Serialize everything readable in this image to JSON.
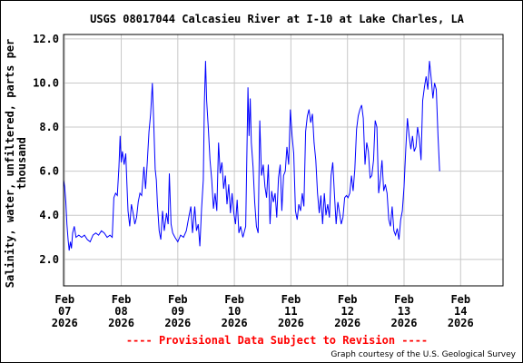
{
  "chart_data": {
    "type": "line",
    "title": "USGS 08017044 Calcasieu River at I-10 at Lake Charles, LA",
    "ylabel_line1": "Salinity, water, unfiltered, parts per",
    "ylabel_line2": "thousand",
    "xlabel": "",
    "ylim": [
      0.8,
      12.2
    ],
    "yticks": [
      "2.0",
      "4.0",
      "6.0",
      "8.0",
      "10.0",
      "12.0"
    ],
    "ytick_values": [
      2,
      4,
      6,
      8,
      10,
      12
    ],
    "xlim": [
      6.98,
      14.75
    ],
    "x_unit": "day of Feb 2026",
    "xticks": [
      {
        "x": 7,
        "month": "Feb",
        "day": "07",
        "year": "2026"
      },
      {
        "x": 8,
        "month": "Feb",
        "day": "08",
        "year": "2026"
      },
      {
        "x": 9,
        "month": "Feb",
        "day": "09",
        "year": "2026"
      },
      {
        "x": 10,
        "month": "Feb",
        "day": "10",
        "year": "2026"
      },
      {
        "x": 11,
        "month": "Feb",
        "day": "11",
        "year": "2026"
      },
      {
        "x": 12,
        "month": "Feb",
        "day": "12",
        "year": "2026"
      },
      {
        "x": 13,
        "month": "Feb",
        "day": "13",
        "year": "2026"
      },
      {
        "x": 14,
        "month": "Feb",
        "day": "14",
        "year": "2026"
      }
    ],
    "grid": true,
    "series": [
      {
        "color": "#0000ff",
        "points": [
          [
            6.98,
            5.6
          ],
          [
            7.0,
            5.3
          ],
          [
            7.02,
            4.6
          ],
          [
            7.04,
            3.6
          ],
          [
            7.06,
            2.9
          ],
          [
            7.08,
            2.4
          ],
          [
            7.1,
            2.8
          ],
          [
            7.12,
            2.5
          ],
          [
            7.14,
            3.2
          ],
          [
            7.17,
            3.5
          ],
          [
            7.2,
            3.0
          ],
          [
            7.25,
            3.1
          ],
          [
            7.3,
            3.0
          ],
          [
            7.35,
            3.1
          ],
          [
            7.4,
            2.9
          ],
          [
            7.45,
            2.8
          ],
          [
            7.5,
            3.1
          ],
          [
            7.55,
            3.2
          ],
          [
            7.6,
            3.1
          ],
          [
            7.65,
            3.3
          ],
          [
            7.7,
            3.2
          ],
          [
            7.75,
            3.0
          ],
          [
            7.8,
            3.1
          ],
          [
            7.84,
            3.0
          ],
          [
            7.87,
            4.8
          ],
          [
            7.9,
            5.0
          ],
          [
            7.93,
            4.9
          ],
          [
            7.96,
            6.2
          ],
          [
            7.98,
            7.6
          ],
          [
            8.0,
            6.4
          ],
          [
            8.02,
            6.9
          ],
          [
            8.05,
            6.3
          ],
          [
            8.08,
            6.8
          ],
          [
            8.1,
            5.4
          ],
          [
            8.12,
            4.2
          ],
          [
            8.15,
            3.5
          ],
          [
            8.18,
            4.5
          ],
          [
            8.21,
            4.1
          ],
          [
            8.24,
            3.6
          ],
          [
            8.27,
            3.9
          ],
          [
            8.3,
            4.6
          ],
          [
            8.33,
            5.0
          ],
          [
            8.36,
            4.9
          ],
          [
            8.4,
            6.2
          ],
          [
            8.43,
            5.2
          ],
          [
            8.46,
            6.4
          ],
          [
            8.49,
            7.8
          ],
          [
            8.52,
            8.6
          ],
          [
            8.55,
            10.0
          ],
          [
            8.57,
            8.6
          ],
          [
            8.6,
            6.1
          ],
          [
            8.62,
            5.6
          ],
          [
            8.64,
            4.5
          ],
          [
            8.67,
            3.3
          ],
          [
            8.7,
            2.9
          ],
          [
            8.73,
            4.2
          ],
          [
            8.76,
            3.3
          ],
          [
            8.8,
            4.1
          ],
          [
            8.83,
            3.6
          ],
          [
            8.85,
            5.9
          ],
          [
            8.88,
            3.6
          ],
          [
            8.91,
            3.2
          ],
          [
            8.95,
            3.0
          ],
          [
            9.0,
            2.8
          ],
          [
            9.05,
            3.1
          ],
          [
            9.1,
            3.0
          ],
          [
            9.15,
            3.3
          ],
          [
            9.2,
            4.0
          ],
          [
            9.23,
            4.4
          ],
          [
            9.26,
            3.2
          ],
          [
            9.3,
            4.4
          ],
          [
            9.33,
            3.3
          ],
          [
            9.36,
            3.6
          ],
          [
            9.39,
            2.6
          ],
          [
            9.42,
            4.3
          ],
          [
            9.45,
            5.6
          ],
          [
            9.47,
            9.1
          ],
          [
            9.49,
            11.0
          ],
          [
            9.51,
            9.2
          ],
          [
            9.54,
            7.9
          ],
          [
            9.57,
            6.5
          ],
          [
            9.6,
            5.6
          ],
          [
            9.63,
            4.3
          ],
          [
            9.66,
            5.0
          ],
          [
            9.69,
            4.2
          ],
          [
            9.72,
            7.3
          ],
          [
            9.75,
            5.9
          ],
          [
            9.78,
            6.4
          ],
          [
            9.81,
            5.2
          ],
          [
            9.84,
            5.8
          ],
          [
            9.87,
            4.5
          ],
          [
            9.9,
            5.4
          ],
          [
            9.93,
            4.1
          ],
          [
            9.96,
            5.0
          ],
          [
            9.99,
            4.1
          ],
          [
            10.02,
            3.6
          ],
          [
            10.05,
            4.7
          ],
          [
            10.08,
            3.2
          ],
          [
            10.11,
            3.5
          ],
          [
            10.15,
            3.0
          ],
          [
            10.2,
            3.5
          ],
          [
            10.24,
            9.8
          ],
          [
            10.26,
            7.6
          ],
          [
            10.28,
            9.3
          ],
          [
            10.3,
            7.3
          ],
          [
            10.33,
            6.2
          ],
          [
            10.36,
            4.6
          ],
          [
            10.39,
            3.5
          ],
          [
            10.42,
            3.2
          ],
          [
            10.45,
            8.3
          ],
          [
            10.48,
            5.8
          ],
          [
            10.51,
            6.3
          ],
          [
            10.54,
            5.3
          ],
          [
            10.57,
            4.8
          ],
          [
            10.6,
            6.3
          ],
          [
            10.63,
            3.6
          ],
          [
            10.66,
            5.1
          ],
          [
            10.69,
            4.6
          ],
          [
            10.72,
            5.0
          ],
          [
            10.75,
            3.9
          ],
          [
            10.78,
            5.7
          ],
          [
            10.81,
            6.3
          ],
          [
            10.84,
            4.2
          ],
          [
            10.87,
            5.8
          ],
          [
            10.9,
            6.0
          ],
          [
            10.93,
            7.1
          ],
          [
            10.96,
            6.3
          ],
          [
            10.99,
            8.8
          ],
          [
            11.02,
            7.6
          ],
          [
            11.05,
            6.8
          ],
          [
            11.08,
            4.2
          ],
          [
            11.11,
            3.8
          ],
          [
            11.14,
            4.5
          ],
          [
            11.17,
            4.2
          ],
          [
            11.2,
            5.0
          ],
          [
            11.23,
            4.4
          ],
          [
            11.26,
            7.8
          ],
          [
            11.29,
            8.5
          ],
          [
            11.32,
            8.8
          ],
          [
            11.35,
            8.2
          ],
          [
            11.38,
            8.6
          ],
          [
            11.41,
            7.3
          ],
          [
            11.44,
            6.5
          ],
          [
            11.47,
            5.0
          ],
          [
            11.5,
            4.1
          ],
          [
            11.53,
            4.9
          ],
          [
            11.56,
            3.6
          ],
          [
            11.59,
            5.0
          ],
          [
            11.62,
            4.0
          ],
          [
            11.65,
            4.5
          ],
          [
            11.68,
            3.9
          ],
          [
            11.71,
            5.8
          ],
          [
            11.74,
            6.4
          ],
          [
            11.77,
            4.9
          ],
          [
            11.8,
            3.6
          ],
          [
            11.83,
            4.6
          ],
          [
            11.86,
            4.1
          ],
          [
            11.89,
            3.6
          ],
          [
            11.92,
            3.9
          ],
          [
            11.95,
            4.8
          ],
          [
            11.98,
            4.9
          ],
          [
            12.01,
            4.8
          ],
          [
            12.04,
            5.0
          ],
          [
            12.07,
            5.8
          ],
          [
            12.1,
            5.1
          ],
          [
            12.13,
            6.1
          ],
          [
            12.16,
            7.9
          ],
          [
            12.19,
            8.5
          ],
          [
            12.22,
            8.8
          ],
          [
            12.25,
            9.0
          ],
          [
            12.28,
            8.4
          ],
          [
            12.31,
            6.3
          ],
          [
            12.34,
            7.3
          ],
          [
            12.37,
            6.9
          ],
          [
            12.4,
            5.7
          ],
          [
            12.43,
            5.8
          ],
          [
            12.46,
            6.5
          ],
          [
            12.49,
            8.3
          ],
          [
            12.52,
            8.0
          ],
          [
            12.55,
            5.0
          ],
          [
            12.58,
            5.6
          ],
          [
            12.61,
            6.5
          ],
          [
            12.64,
            5.1
          ],
          [
            12.67,
            5.4
          ],
          [
            12.7,
            5.0
          ],
          [
            12.73,
            3.8
          ],
          [
            12.76,
            3.5
          ],
          [
            12.79,
            4.4
          ],
          [
            12.82,
            3.3
          ],
          [
            12.85,
            3.1
          ],
          [
            12.88,
            3.4
          ],
          [
            12.91,
            2.9
          ],
          [
            12.94,
            3.8
          ],
          [
            12.97,
            4.2
          ],
          [
            13.0,
            5.3
          ],
          [
            13.03,
            7.0
          ],
          [
            13.06,
            8.4
          ],
          [
            13.09,
            7.6
          ],
          [
            13.12,
            7.0
          ],
          [
            13.15,
            7.6
          ],
          [
            13.18,
            6.9
          ],
          [
            13.21,
            7.1
          ],
          [
            13.24,
            8.0
          ],
          [
            13.27,
            7.5
          ],
          [
            13.3,
            6.5
          ],
          [
            13.33,
            9.2
          ],
          [
            13.36,
            9.8
          ],
          [
            13.39,
            10.3
          ],
          [
            13.42,
            9.7
          ],
          [
            13.45,
            11.0
          ],
          [
            13.48,
            10.2
          ],
          [
            13.51,
            9.3
          ],
          [
            13.54,
            10.0
          ],
          [
            13.57,
            9.7
          ],
          [
            13.6,
            7.6
          ],
          [
            13.63,
            6.0
          ]
        ]
      }
    ]
  },
  "footer": {
    "provisional": "---- Provisional Data Subject to Revision ----",
    "credit": "Graph courtesy of the U.S. Geological Survey"
  }
}
